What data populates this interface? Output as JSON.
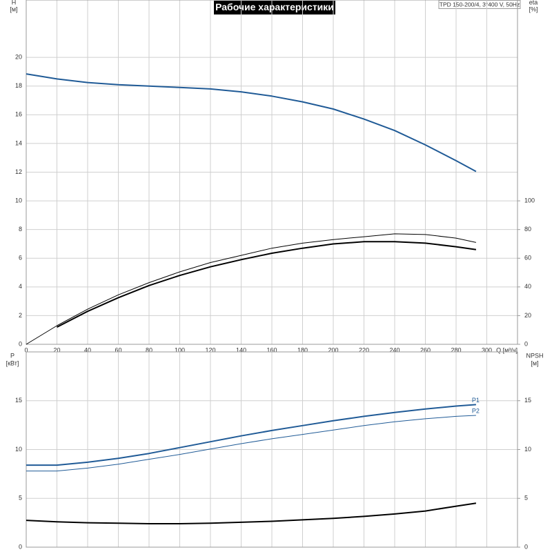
{
  "chart_data": [
    {
      "type": "line",
      "title": "Рабочие характеристики",
      "subtitle": "TPD 150-200/4, 3*400 V, 50Hz",
      "xlabel": "Q [м³/ч]",
      "ylabel": "H",
      "ylabel_unit": "[м]",
      "y2label": "eta",
      "y2label_unit": "[%]",
      "x": [
        0,
        20,
        40,
        60,
        80,
        100,
        120,
        140,
        160,
        180,
        200,
        220,
        240,
        260,
        280,
        293
      ],
      "xlim": [
        0,
        320
      ],
      "xticks": [
        0,
        20,
        40,
        60,
        80,
        100,
        120,
        140,
        160,
        180,
        200,
        220,
        240,
        260,
        280,
        300
      ],
      "ylim": [
        0,
        24
      ],
      "yticks": [
        0,
        2,
        4,
        6,
        8,
        10,
        12,
        14,
        16,
        18,
        20
      ],
      "y2lim": [
        0,
        240
      ],
      "y2ticks": [
        0,
        20,
        40,
        60,
        80,
        100
      ],
      "grid": true,
      "series": [
        {
          "color": "#1f5a96",
          "width": 2,
          "values": [
            18.85,
            18.5,
            18.25,
            18.1,
            18.0,
            17.9,
            17.8,
            17.6,
            17.3,
            16.9,
            16.4,
            15.7,
            14.9,
            13.9,
            12.8,
            12.05
          ]
        },
        {
          "color": "#000000",
          "width": 2,
          "axis": "y2",
          "values": [
            null,
            12,
            23,
            32.5,
            41,
            48,
            54,
            59,
            63.5,
            67,
            70,
            71.5,
            71.5,
            70.5,
            68,
            66
          ]
        },
        {
          "color": "#000000",
          "width": 1,
          "axis": "y2",
          "values": [
            0,
            13,
            24.5,
            34.5,
            43,
            50.5,
            57,
            62,
            67,
            70.5,
            73,
            75,
            77,
            76.5,
            74,
            71
          ]
        }
      ]
    },
    {
      "type": "line",
      "ylabel": "P",
      "ylabel_unit": "[кВт]",
      "y2label": "NPSH",
      "y2label_unit": "[м]",
      "x": [
        0,
        20,
        40,
        60,
        80,
        100,
        120,
        140,
        160,
        180,
        200,
        220,
        240,
        260,
        280,
        293
      ],
      "xlim": [
        0,
        320
      ],
      "ylim": [
        0,
        20
      ],
      "yticks": [
        0,
        5,
        10,
        15
      ],
      "y2lim": [
        0,
        20
      ],
      "y2ticks": [
        0,
        5,
        10,
        15
      ],
      "grid": true,
      "series": [
        {
          "name": "P1",
          "color": "#1f5a96",
          "width": 2,
          "values": [
            8.4,
            8.4,
            8.7,
            9.1,
            9.6,
            10.2,
            10.8,
            11.4,
            11.95,
            12.45,
            12.95,
            13.4,
            13.8,
            14.15,
            14.45,
            14.6
          ]
        },
        {
          "name": "P2",
          "color": "#1f5a96",
          "width": 1,
          "values": [
            7.8,
            7.8,
            8.1,
            8.5,
            9.0,
            9.5,
            10.05,
            10.6,
            11.1,
            11.55,
            12.0,
            12.45,
            12.85,
            13.15,
            13.4,
            13.5
          ]
        },
        {
          "color": "#000000",
          "width": 2,
          "axis": "y2",
          "values": [
            2.75,
            2.6,
            2.5,
            2.45,
            2.4,
            2.4,
            2.45,
            2.55,
            2.65,
            2.8,
            2.95,
            3.15,
            3.4,
            3.7,
            4.2,
            4.5
          ]
        }
      ]
    }
  ]
}
